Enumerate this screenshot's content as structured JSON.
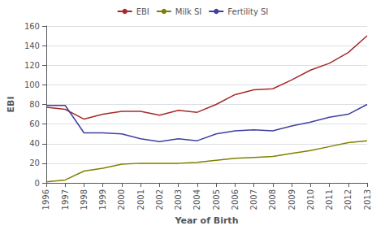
{
  "chart_data": {
    "type": "line",
    "xlabel": "Year of Birth",
    "ylabel": "EBI",
    "x": [
      1996,
      1997,
      1998,
      1999,
      2000,
      2001,
      2002,
      2003,
      2004,
      2005,
      2006,
      2007,
      2008,
      2009,
      2010,
      2011,
      2012,
      2013
    ],
    "series": [
      {
        "name": "EBI",
        "color": "#a52a2a",
        "values": [
          77,
          75,
          65,
          70,
          73,
          73,
          69,
          74,
          72,
          80,
          90,
          95,
          96,
          105,
          115,
          122,
          133,
          150
        ]
      },
      {
        "name": "Milk SI",
        "color": "#808000",
        "values": [
          1,
          3,
          12,
          15,
          19,
          20,
          20,
          20,
          21,
          23,
          25,
          26,
          27,
          30,
          33,
          37,
          41,
          43
        ]
      },
      {
        "name": "Fertility SI",
        "color": "#4040a0",
        "values": [
          79,
          79,
          51,
          51,
          50,
          45,
          42,
          45,
          43,
          50,
          53,
          54,
          53,
          58,
          62,
          67,
          70,
          80
        ]
      }
    ],
    "xlim": [
      1996,
      2013
    ],
    "xticks": [
      1996,
      1997,
      1998,
      1999,
      2000,
      2001,
      2002,
      2003,
      2004,
      2005,
      2006,
      2007,
      2008,
      2009,
      2010,
      2011,
      2012,
      2013
    ],
    "ylim": [
      0,
      160
    ],
    "yticks": [
      0,
      20,
      40,
      60,
      80,
      100,
      120,
      140,
      160
    ],
    "grid": true,
    "legend": "top"
  }
}
